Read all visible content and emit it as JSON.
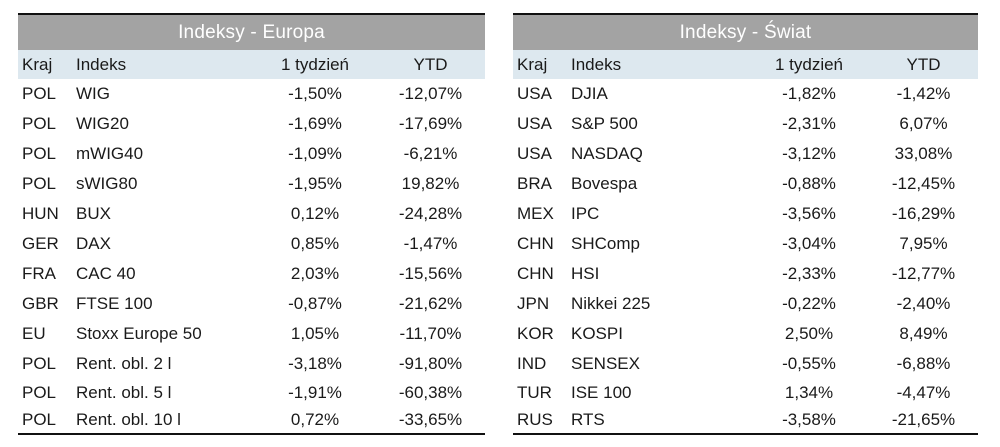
{
  "europe": {
    "title": "Indeksy - Europa",
    "headers": [
      "Kraj",
      "Indeks",
      "1 tydzień",
      "YTD"
    ],
    "rows": [
      [
        "POL",
        "WIG",
        "-1,50%",
        "-12,07%"
      ],
      [
        "POL",
        "WIG20",
        "-1,69%",
        "-17,69%"
      ],
      [
        "POL",
        "mWIG40",
        "-1,09%",
        "-6,21%"
      ],
      [
        "POL",
        "sWIG80",
        "-1,95%",
        "19,82%"
      ],
      [
        "HUN",
        "BUX",
        "0,12%",
        "-24,28%"
      ],
      [
        "GER",
        "DAX",
        "0,85%",
        "-1,47%"
      ],
      [
        "FRA",
        "CAC 40",
        "2,03%",
        "-15,56%"
      ],
      [
        "GBR",
        "FTSE 100",
        "-0,87%",
        "-21,62%"
      ],
      [
        "EU",
        "Stoxx Europe 50",
        "1,05%",
        "-11,70%"
      ],
      [
        "POL",
        "Rent. obl. 2 l",
        "-3,18%",
        "-91,80%"
      ],
      [
        "POL",
        "Rent. obl. 5 l",
        "-1,91%",
        "-60,38%"
      ],
      [
        "POL",
        "Rent. obl. 10 l",
        "0,72%",
        "-33,65%"
      ]
    ]
  },
  "world": {
    "title": "Indeksy - Świat",
    "headers": [
      "Kraj",
      "Indeks",
      "1 tydzień",
      "YTD"
    ],
    "rows": [
      [
        "USA",
        "DJIA",
        "-1,82%",
        "-1,42%"
      ],
      [
        "USA",
        "S&P 500",
        "-2,31%",
        "6,07%"
      ],
      [
        "USA",
        "NASDAQ",
        "-3,12%",
        "33,08%"
      ],
      [
        "BRA",
        "Bovespa",
        "-0,88%",
        "-12,45%"
      ],
      [
        "MEX",
        "IPC",
        "-3,56%",
        "-16,29%"
      ],
      [
        "CHN",
        "SHComp",
        "-3,04%",
        "7,95%"
      ],
      [
        "CHN",
        "HSI",
        "-2,33%",
        "-12,77%"
      ],
      [
        "JPN",
        "Nikkei 225",
        "-0,22%",
        "-2,40%"
      ],
      [
        "KOR",
        "KOSPI",
        "2,50%",
        "8,49%"
      ],
      [
        "IND",
        "SENSEX",
        "-0,55%",
        "-6,88%"
      ],
      [
        "TUR",
        "ISE 100",
        "1,34%",
        "-4,47%"
      ],
      [
        "RUS",
        "RTS",
        "-3,58%",
        "-21,65%"
      ]
    ]
  },
  "colors": {
    "title_bar": "#a3a3a3",
    "header_row": "#dde8ef",
    "rule": "#111111"
  }
}
